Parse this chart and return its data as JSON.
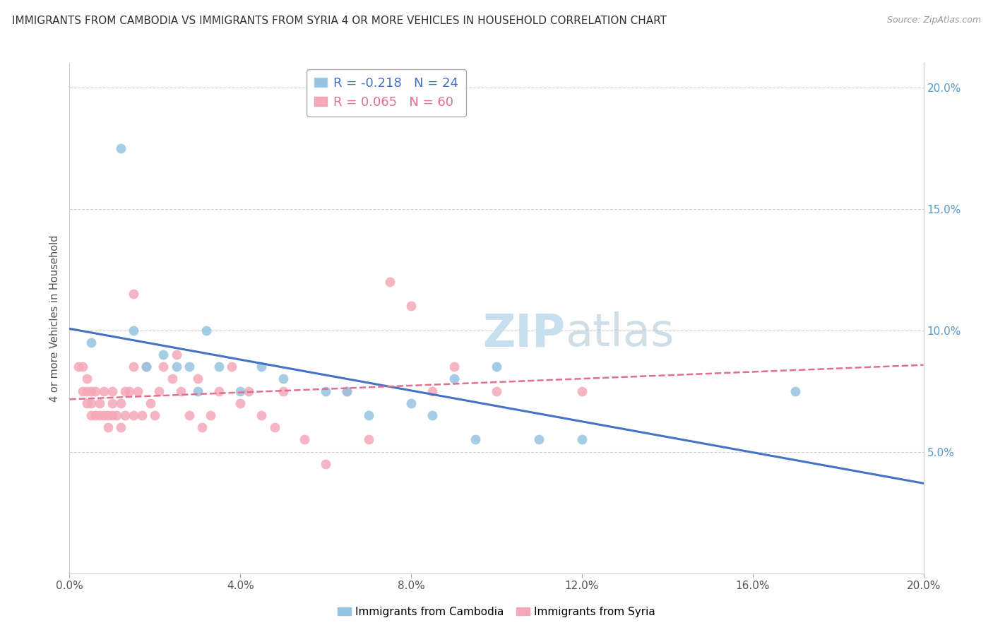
{
  "title": "IMMIGRANTS FROM CAMBODIA VS IMMIGRANTS FROM SYRIA 4 OR MORE VEHICLES IN HOUSEHOLD CORRELATION CHART",
  "source": "Source: ZipAtlas.com",
  "ylabel": "4 or more Vehicles in Household",
  "xlim": [
    0.0,
    0.2
  ],
  "ylim": [
    0.0,
    0.21
  ],
  "xtick_vals": [
    0.0,
    0.04,
    0.08,
    0.12,
    0.16,
    0.2
  ],
  "ytick_vals": [
    0.0,
    0.05,
    0.1,
    0.15,
    0.2
  ],
  "xtick_labels": [
    "0.0%",
    "4.0%",
    "8.0%",
    "12.0%",
    "16.0%",
    "20.0%"
  ],
  "ytick_labels_right": [
    "",
    "5.0%",
    "10.0%",
    "15.0%",
    "20.0%"
  ],
  "r_cambodia": -0.218,
  "n_cambodia": 24,
  "r_syria": 0.065,
  "n_syria": 60,
  "cambodia_color": "#94c4e0",
  "syria_color": "#f4a8b8",
  "cambodia_line_color": "#4472c4",
  "syria_line_color": "#e07090",
  "watermark_color": "#d8e8f0",
  "cambodia_x": [
    0.005,
    0.012,
    0.015,
    0.018,
    0.022,
    0.025,
    0.028,
    0.03,
    0.032,
    0.035,
    0.04,
    0.045,
    0.05,
    0.06,
    0.065,
    0.07,
    0.08,
    0.085,
    0.09,
    0.095,
    0.1,
    0.11,
    0.12,
    0.17
  ],
  "cambodia_y": [
    0.095,
    0.175,
    0.1,
    0.085,
    0.09,
    0.085,
    0.085,
    0.075,
    0.1,
    0.085,
    0.075,
    0.085,
    0.08,
    0.075,
    0.075,
    0.065,
    0.07,
    0.065,
    0.08,
    0.055,
    0.085,
    0.055,
    0.055,
    0.075
  ],
  "syria_x": [
    0.002,
    0.003,
    0.003,
    0.004,
    0.004,
    0.004,
    0.005,
    0.005,
    0.005,
    0.006,
    0.006,
    0.007,
    0.007,
    0.008,
    0.008,
    0.009,
    0.009,
    0.01,
    0.01,
    0.01,
    0.011,
    0.012,
    0.012,
    0.013,
    0.013,
    0.014,
    0.015,
    0.015,
    0.016,
    0.017,
    0.018,
    0.019,
    0.02,
    0.021,
    0.022,
    0.024,
    0.025,
    0.026,
    0.028,
    0.03,
    0.031,
    0.033,
    0.035,
    0.038,
    0.04,
    0.042,
    0.045,
    0.048,
    0.05,
    0.055,
    0.06,
    0.065,
    0.07,
    0.075,
    0.08,
    0.085,
    0.09,
    0.1,
    0.12,
    0.015
  ],
  "syria_y": [
    0.085,
    0.075,
    0.085,
    0.07,
    0.075,
    0.08,
    0.065,
    0.07,
    0.075,
    0.065,
    0.075,
    0.065,
    0.07,
    0.065,
    0.075,
    0.06,
    0.065,
    0.065,
    0.07,
    0.075,
    0.065,
    0.06,
    0.07,
    0.065,
    0.075,
    0.075,
    0.065,
    0.085,
    0.075,
    0.065,
    0.085,
    0.07,
    0.065,
    0.075,
    0.085,
    0.08,
    0.09,
    0.075,
    0.065,
    0.08,
    0.06,
    0.065,
    0.075,
    0.085,
    0.07,
    0.075,
    0.065,
    0.06,
    0.075,
    0.055,
    0.045,
    0.075,
    0.055,
    0.12,
    0.11,
    0.075,
    0.085,
    0.075,
    0.075,
    0.115
  ]
}
